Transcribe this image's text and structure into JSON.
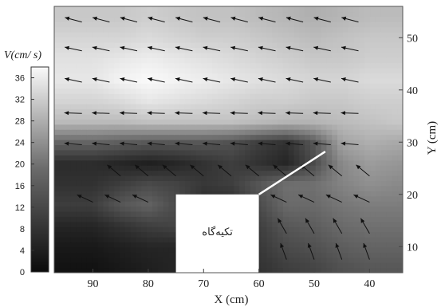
{
  "chart_data": {
    "type": "heatmap",
    "subtype": "contour-with-vector-field",
    "title": "",
    "xlabel": "X (cm)",
    "ylabel": "Y (cm)",
    "x_axis": {
      "reversed": true,
      "ticks": [
        90,
        80,
        70,
        60,
        50,
        40
      ],
      "tick_labels": [
        "90",
        "80",
        "70",
        "60",
        "50",
        "40"
      ]
    },
    "y_axis": {
      "position": "right",
      "ticks": [
        10,
        20,
        30,
        40,
        50
      ],
      "tick_labels": [
        "10",
        "20",
        "30",
        "40",
        "50"
      ]
    },
    "xlim": [
      97,
      34
    ],
    "ylim": [
      5,
      56
    ],
    "colorbar": {
      "label": "V(cm/ s)",
      "min": 0,
      "max": 38,
      "ticks": [
        0,
        4,
        8,
        12,
        16,
        20,
        24,
        28,
        32,
        36
      ],
      "tick_labels": [
        "0",
        "4",
        "8",
        "12",
        "16",
        "20",
        "24",
        "28",
        "32",
        "36"
      ],
      "colormap": "grayscale, black = 0, white = high"
    },
    "structure": {
      "label": "تکیه‌گاه",
      "x_range": [
        75,
        60
      ],
      "y_range": [
        5,
        20
      ]
    },
    "sloped_line": {
      "from": [
        60,
        20
      ],
      "to": [
        48,
        28.2
      ]
    },
    "velocity_grid": {
      "x": [
        90,
        85,
        80,
        75,
        70,
        65,
        60,
        55,
        50,
        45,
        40,
        35
      ],
      "y": [
        6,
        10,
        14,
        18,
        22,
        26,
        30,
        34,
        38,
        42,
        46,
        50,
        54
      ],
      "speed": [
        [
          1,
          2,
          3,
          4,
          4,
          5,
          6,
          8,
          9,
          11,
          12,
          12
        ],
        [
          2,
          3,
          4,
          4,
          4,
          5,
          7,
          10,
          11,
          13,
          14,
          14
        ],
        [
          4,
          6,
          8,
          9,
          7,
          6,
          8,
          12,
          13,
          15,
          16,
          16
        ],
        [
          8,
          12,
          14,
          10,
          5,
          5,
          10,
          15,
          15,
          17,
          18,
          18
        ],
        [
          6,
          8,
          10,
          9,
          7,
          8,
          12,
          16,
          16,
          19,
          21,
          20
        ],
        [
          5,
          4,
          3,
          4,
          6,
          8,
          6,
          4,
          10,
          20,
          23,
          22
        ],
        [
          14,
          13,
          12,
          12,
          12,
          11,
          8,
          6,
          12,
          24,
          26,
          25
        ],
        [
          28,
          28,
          29,
          29,
          29,
          29,
          28,
          27,
          27,
          28,
          29,
          30
        ],
        [
          32,
          33,
          35,
          34,
          33,
          32,
          31,
          31,
          30,
          30,
          31,
          31
        ],
        [
          35,
          37,
          38,
          37,
          36,
          35,
          34,
          33,
          32,
          32,
          33,
          33
        ],
        [
          34,
          35,
          36,
          35,
          34,
          33,
          32,
          31,
          30,
          30,
          31,
          31
        ],
        [
          32,
          32,
          33,
          32,
          31,
          31,
          30,
          29,
          28,
          29,
          30,
          30
        ],
        [
          30,
          30,
          31,
          30,
          29,
          29,
          28,
          27,
          26,
          27,
          28,
          28
        ]
      ]
    },
    "vectors": [
      {
        "y": 53,
        "x": [
          92,
          87,
          82,
          77,
          72,
          67,
          62,
          57,
          52,
          47,
          42
        ],
        "angle_deg": 165
      },
      {
        "y": 47.5,
        "x": [
          92,
          87,
          82,
          77,
          72,
          67,
          62,
          57,
          52,
          47,
          42
        ],
        "angle_deg": 168
      },
      {
        "y": 41.5,
        "x": [
          92,
          87,
          82,
          77,
          72,
          67,
          62,
          57,
          52,
          47,
          42
        ],
        "angle_deg": 168
      },
      {
        "y": 35.5,
        "x": [
          92,
          87,
          82,
          77,
          72,
          67,
          62,
          57,
          52,
          47,
          42
        ],
        "angle_deg": 178
      },
      {
        "y": 29.5,
        "x": [
          92,
          87,
          82,
          77,
          72,
          67,
          62,
          57,
          52,
          47,
          42
        ],
        "angle_deg": 175
      },
      {
        "y": 23.5,
        "x": [
          85,
          80,
          75,
          70,
          65,
          60,
          55,
          50,
          45,
          40
        ],
        "angle_deg": 140
      },
      {
        "y": 18.5,
        "x": [
          90,
          85,
          80,
          55,
          50,
          45,
          40
        ],
        "angle_deg": 155
      },
      {
        "y": 12.5,
        "x": [
          55,
          50,
          45,
          40
        ],
        "angle_deg": 120
      },
      {
        "y": 7.5,
        "x": [
          55,
          50,
          45,
          40
        ],
        "angle_deg": 110
      }
    ]
  }
}
